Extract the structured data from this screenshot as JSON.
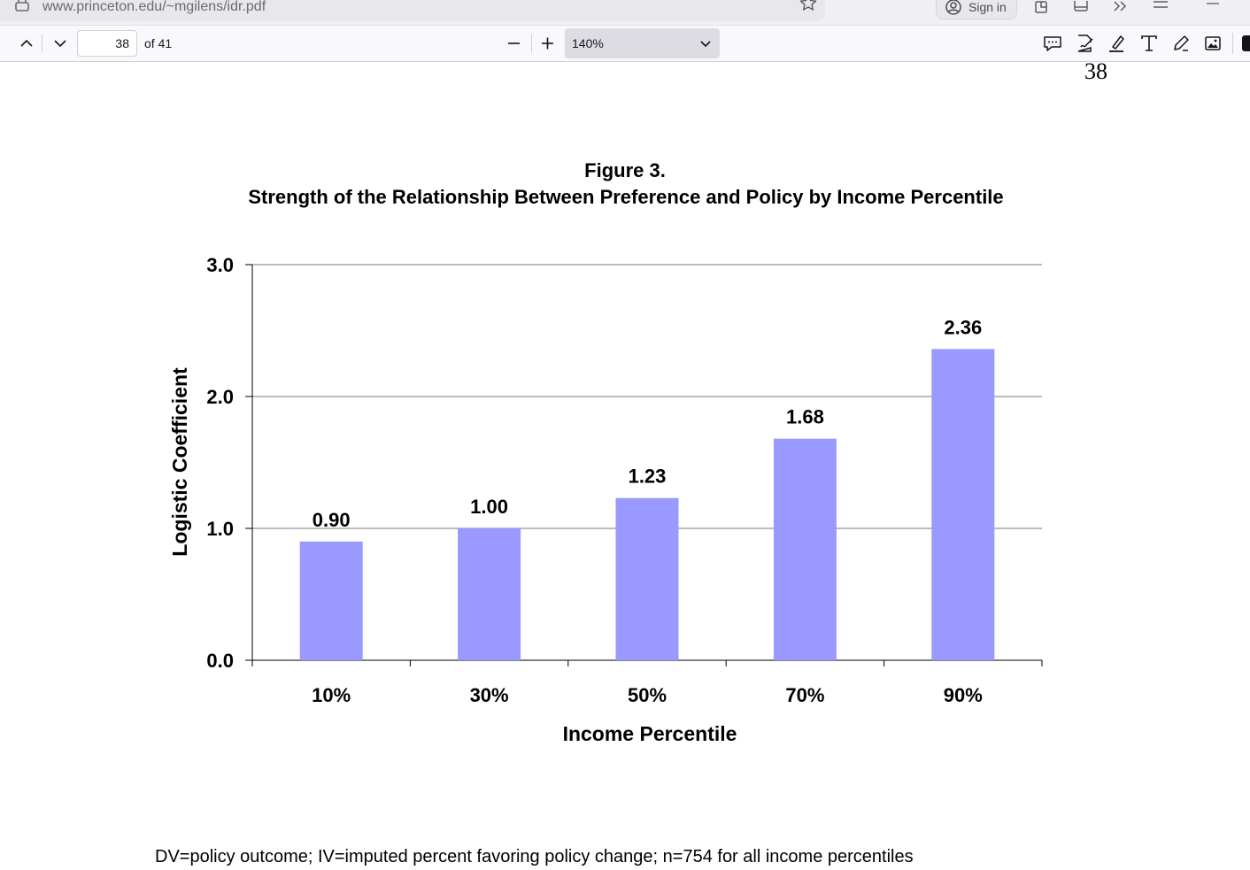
{
  "browser": {
    "url": "www.princeton.edu/~mgilens/idr.pdf",
    "signin_label": "Sign in"
  },
  "pdf_toolbar": {
    "page_number": "38",
    "page_count": "of 41",
    "zoom": "140%"
  },
  "document": {
    "page_number": "38",
    "figure_label": "Figure 3.",
    "figure_title": "Strength of the Relationship Between Preference and Policy by Income Percentile",
    "caption": "DV=policy outcome; IV=imputed percent favoring policy change; n=754 for all income percentiles"
  },
  "chart_data": {
    "type": "bar",
    "categories": [
      "10%",
      "30%",
      "50%",
      "70%",
      "90%"
    ],
    "values": [
      0.9,
      1.0,
      1.23,
      1.68,
      2.36
    ],
    "value_labels": [
      "0.90",
      "1.00",
      "1.23",
      "1.68",
      "2.36"
    ],
    "xlabel": "Income Percentile",
    "ylabel": "Logistic Coefficient",
    "ylim": [
      0,
      3
    ],
    "yticks": [
      0,
      1,
      2,
      3
    ],
    "ytick_labels": [
      "0.0",
      "1.0",
      "2.0",
      "3.0"
    ],
    "grid": true,
    "bar_color": "#9999ff"
  }
}
